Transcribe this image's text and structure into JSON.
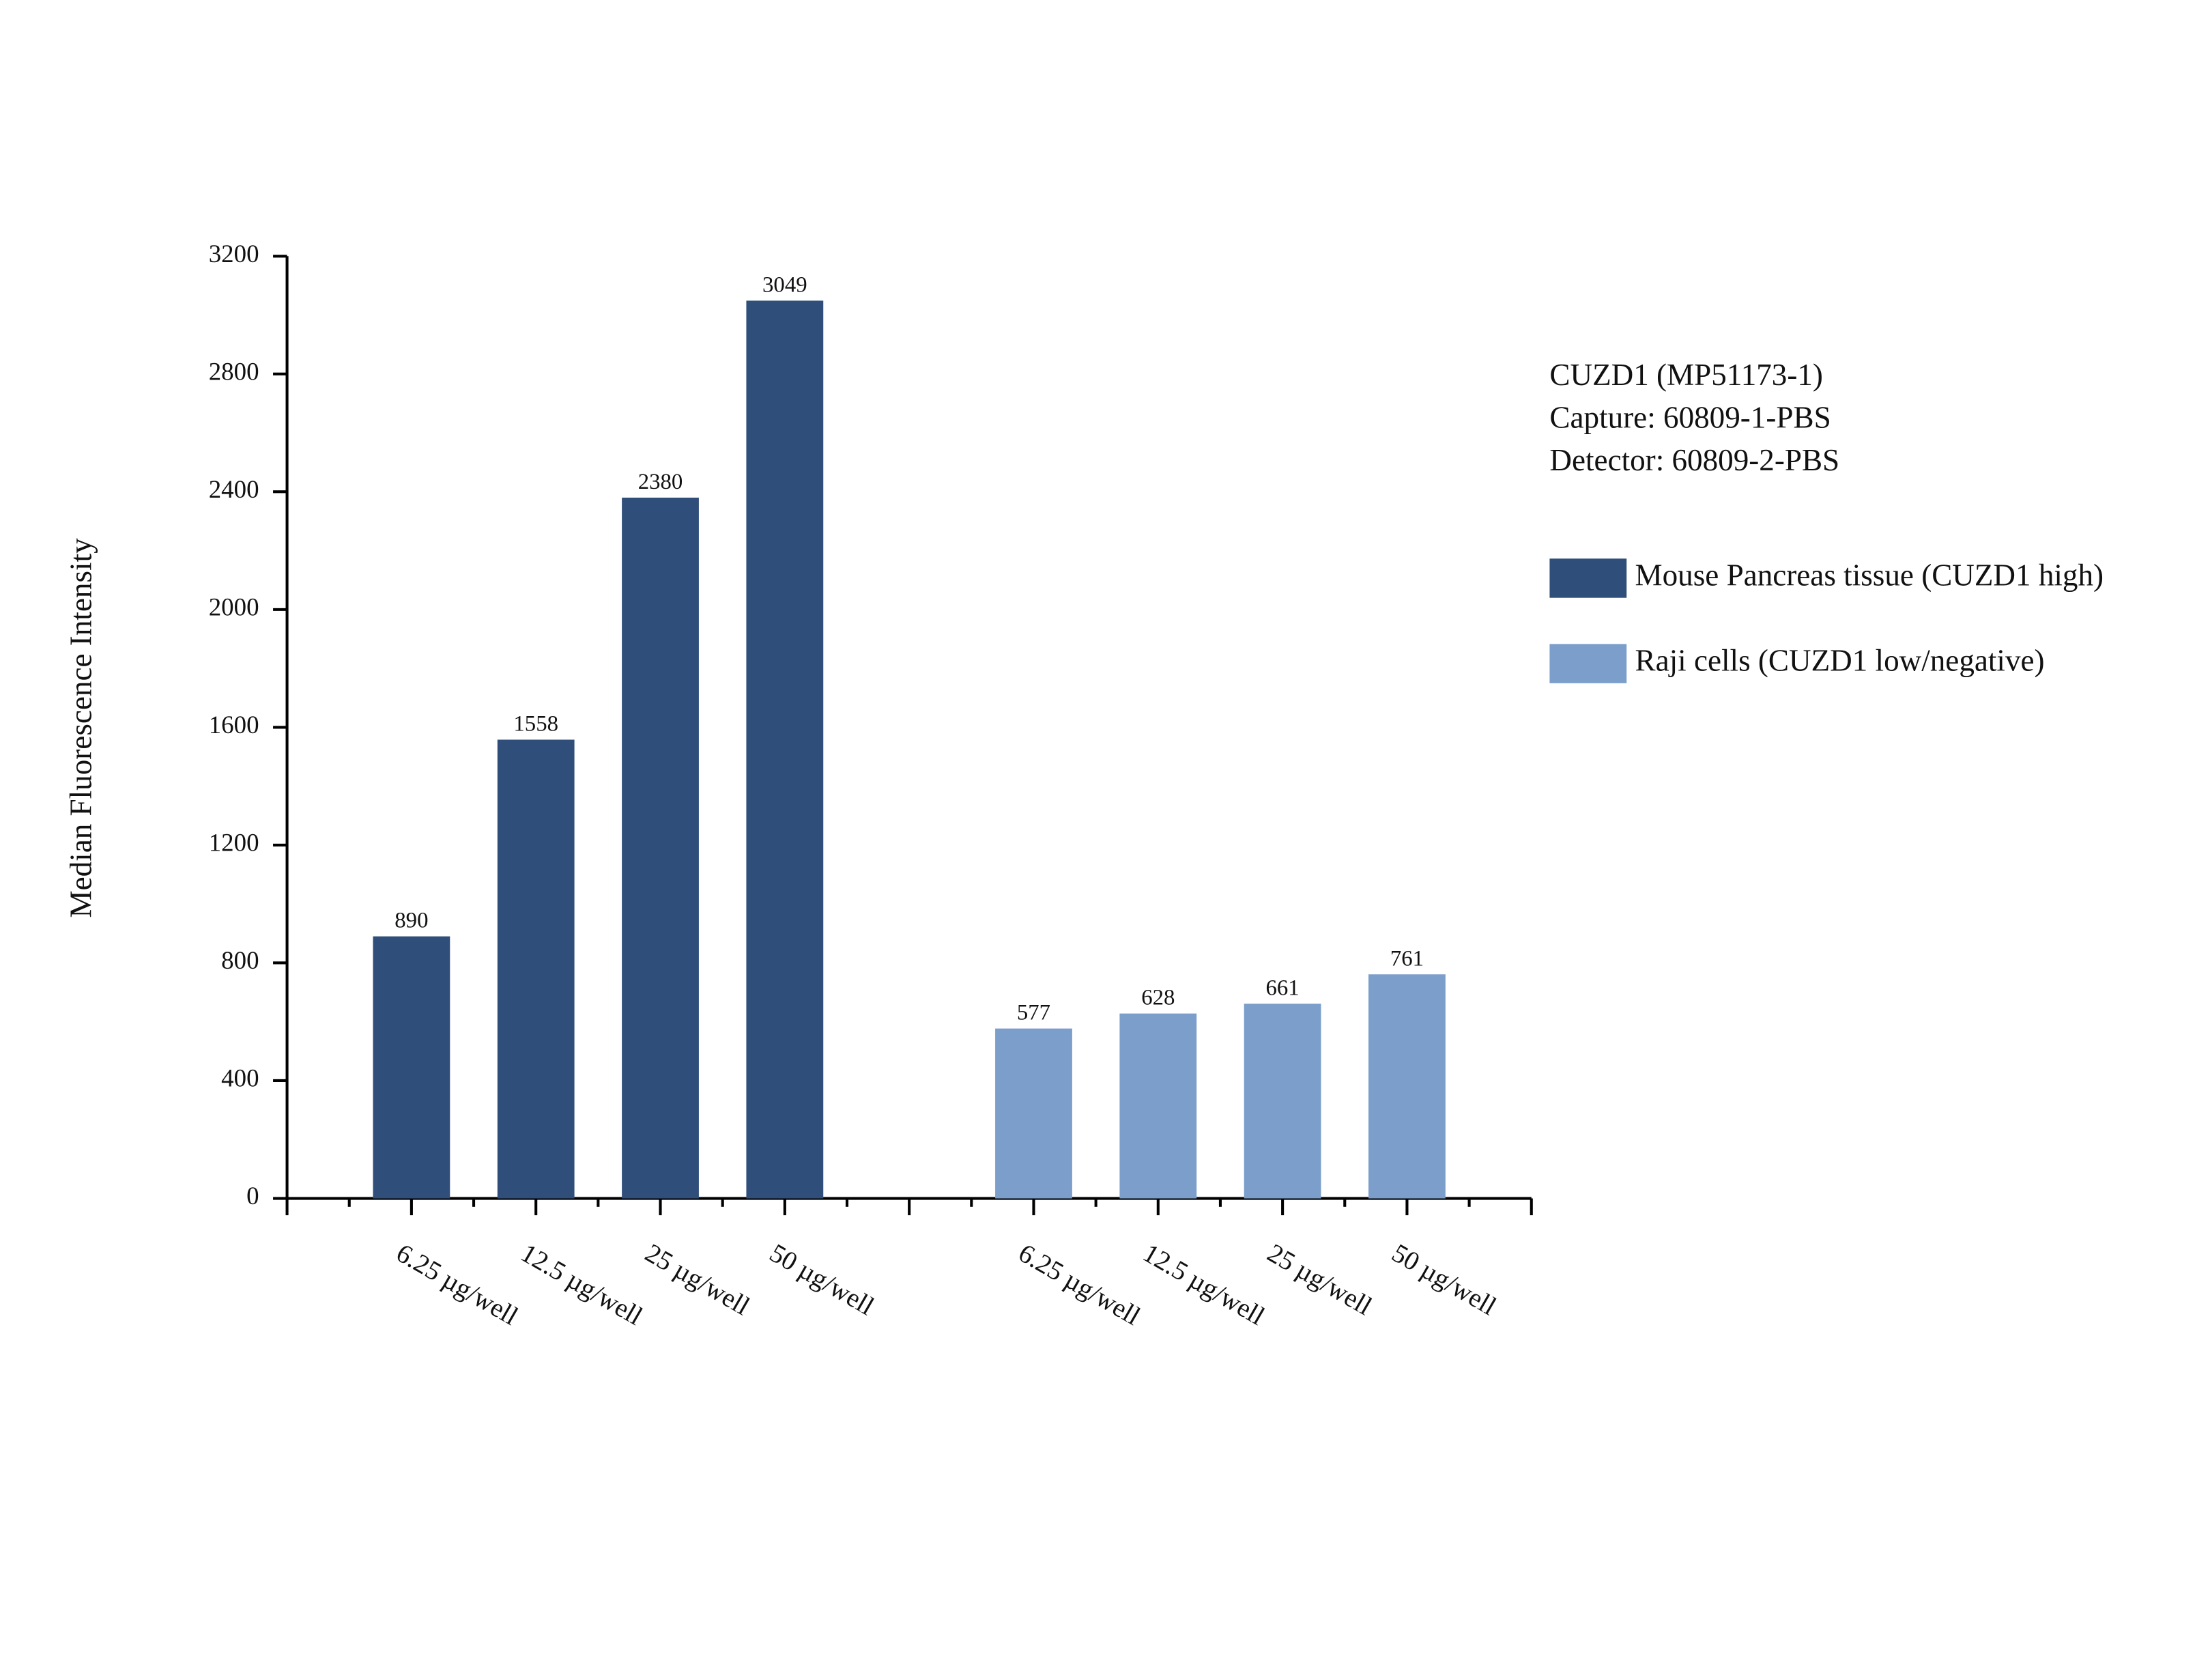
{
  "chart_data": {
    "type": "bar",
    "y_label": "Median Fluorescence Intensity",
    "annotations": [
      "CUZD1 (MP51173-1)",
      "Capture: 60809-1-PBS",
      "Detector: 60809-2-PBS"
    ],
    "categories": [
      "6.25 µg/well",
      "12.5 µg/well",
      "25 µg/well",
      "50 µg/well",
      null,
      "6.25 µg/well",
      "12.5 µg/well",
      "25 µg/well",
      "50 µg/well"
    ],
    "series": [
      {
        "name": "Mouse Pancreas tissue (CUZD1 high)",
        "color": "#2f4f7a",
        "values": [
          890,
          1558,
          2380,
          3049,
          null,
          null,
          null,
          null,
          null
        ]
      },
      {
        "name": "Raji cells (CUZD1 low/negative)",
        "color": "#7b9ecb",
        "values": [
          null,
          null,
          null,
          null,
          null,
          577,
          628,
          661,
          761
        ]
      }
    ],
    "ylim": [
      0,
      3200
    ],
    "yticks": [
      0,
      400,
      800,
      1200,
      1600,
      2000,
      2400,
      2800,
      3200
    ],
    "grid": false
  }
}
